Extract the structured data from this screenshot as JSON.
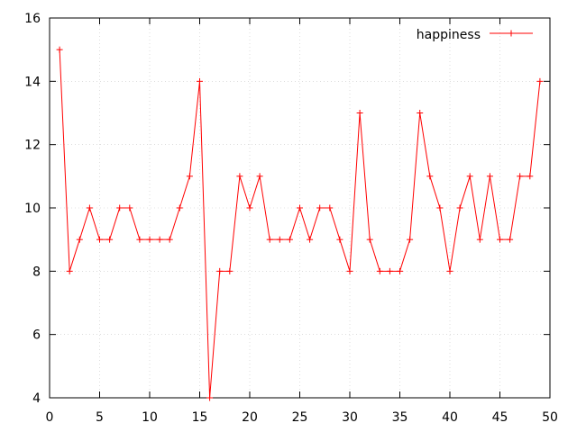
{
  "chart_data": {
    "type": "line",
    "title": "",
    "xlabel": "",
    "ylabel": "",
    "xlim": [
      0,
      50
    ],
    "ylim": [
      4,
      16
    ],
    "xticks": [
      0,
      5,
      10,
      15,
      20,
      25,
      30,
      35,
      40,
      45,
      50
    ],
    "yticks": [
      4,
      6,
      8,
      10,
      12,
      14,
      16
    ],
    "xtick_labels": [
      "0",
      "5",
      "10",
      "15",
      "20",
      "25",
      "30",
      "35",
      "40",
      "45",
      "50"
    ],
    "ytick_labels": [
      "4",
      "6",
      "8",
      "10",
      "12",
      "14",
      "16"
    ],
    "grid": true,
    "legend_position": "top-right",
    "series": [
      {
        "name": "happiness",
        "color": "#ff0000",
        "marker": "plus",
        "x": [
          1,
          2,
          3,
          4,
          5,
          6,
          7,
          8,
          9,
          10,
          11,
          12,
          13,
          14,
          15,
          16,
          17,
          18,
          19,
          20,
          21,
          22,
          23,
          24,
          25,
          26,
          27,
          28,
          29,
          30,
          31,
          32,
          33,
          34,
          35,
          36,
          37,
          38,
          39,
          40,
          41,
          42,
          43,
          44,
          45,
          46,
          47,
          48,
          49
        ],
        "values": [
          15,
          8,
          9,
          10,
          9,
          9,
          10,
          10,
          9,
          9,
          9,
          9,
          10,
          11,
          14,
          4,
          8,
          8,
          11,
          10,
          11,
          9,
          9,
          9,
          10,
          9,
          10,
          10,
          9,
          8,
          13,
          9,
          8,
          8,
          8,
          9,
          13,
          11,
          10,
          8,
          10,
          11,
          9,
          11,
          9,
          9,
          11,
          11,
          14
        ]
      }
    ]
  }
}
